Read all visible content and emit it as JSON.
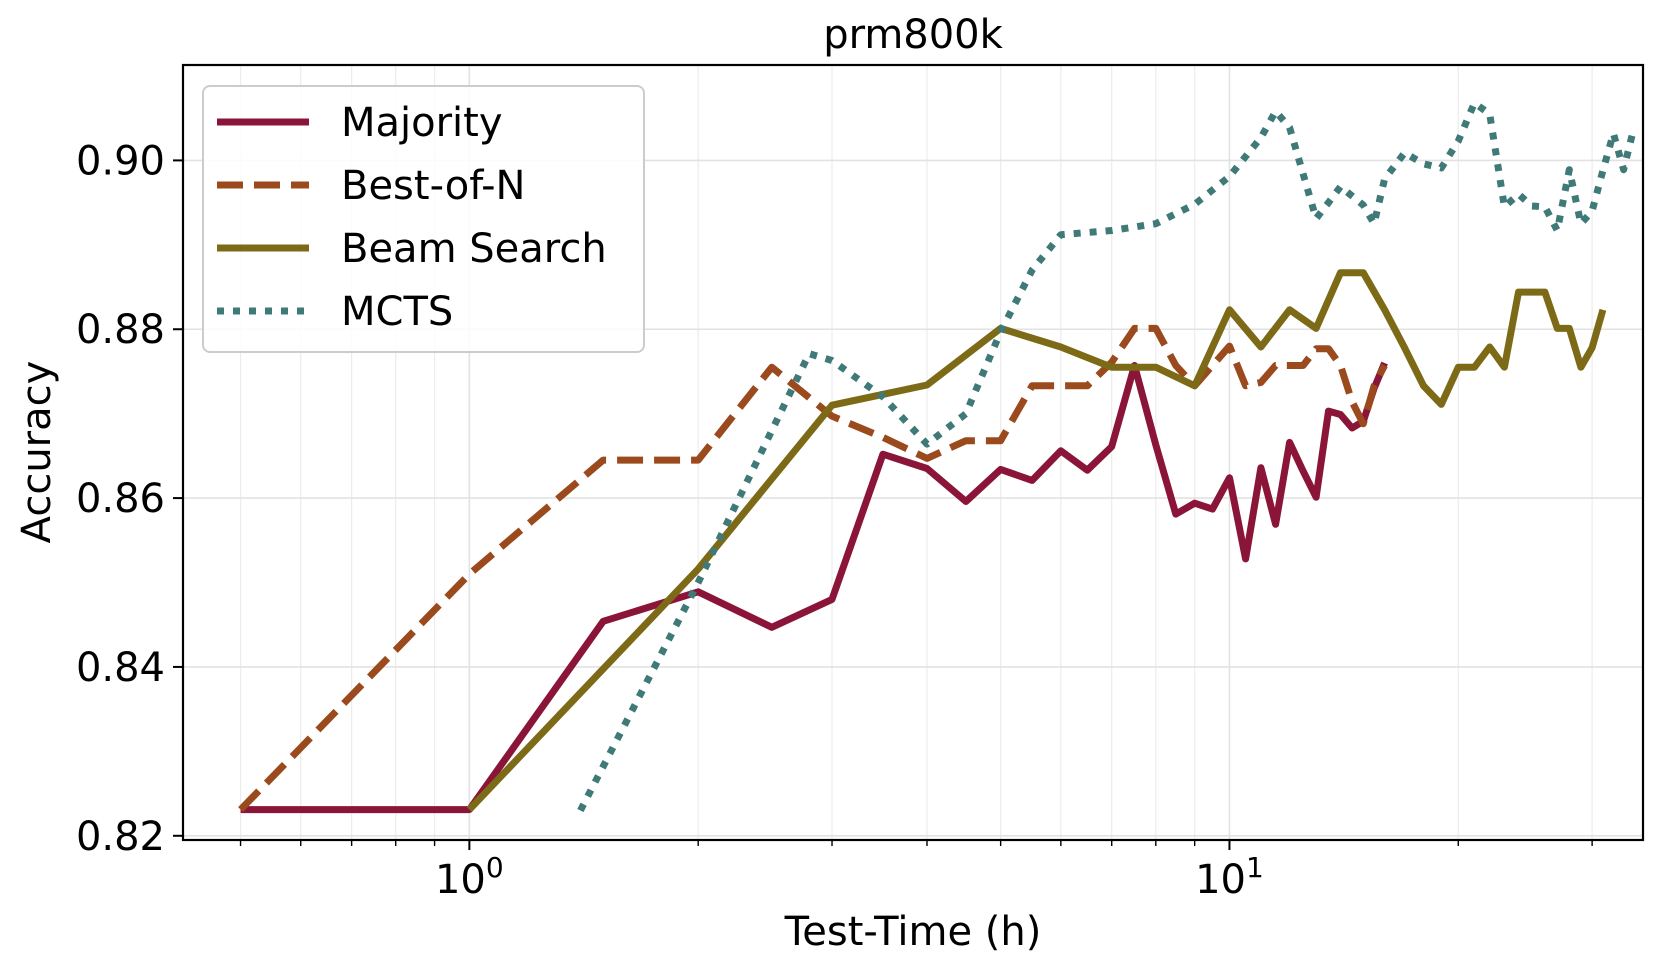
{
  "chart_data": {
    "type": "line",
    "title": "prm800k",
    "xlabel": "Test-Time (h)",
    "ylabel": "Accuracy",
    "xscale": "log",
    "xlim": [
      0.42,
      35.0
    ],
    "ylim": [
      0.8195,
      0.9113
    ],
    "xticks": [
      {
        "value": 1,
        "base": "10",
        "exp": "0"
      },
      {
        "value": 10,
        "base": "10",
        "exp": "1"
      }
    ],
    "yticks": [
      {
        "value": 0.82,
        "label": "0.82"
      },
      {
        "value": 0.84,
        "label": "0.84"
      },
      {
        "value": 0.86,
        "label": "0.86"
      },
      {
        "value": 0.88,
        "label": "0.88"
      },
      {
        "value": 0.9,
        "label": "0.90"
      }
    ],
    "grid": true,
    "legend_position": "top-left",
    "series": [
      {
        "name": "Majority",
        "color": "#8b1538",
        "style": "solid",
        "x": [
          0.5,
          1.0,
          1.5,
          2.0,
          2.5,
          3.0,
          3.5,
          4.0,
          4.5,
          5.0,
          5.5,
          6.0,
          6.5,
          7.0,
          7.5,
          8.0,
          8.5,
          9.0,
          9.5,
          10.0,
          10.5,
          11.0,
          11.5,
          12.0,
          12.5,
          13.0,
          13.5,
          14.0,
          14.5,
          15.0,
          15.5,
          16.0
        ],
        "y": [
          0.8231,
          0.8231,
          0.8454,
          0.8489,
          0.8447,
          0.848,
          0.8652,
          0.8635,
          0.8596,
          0.8634,
          0.8621,
          0.8656,
          0.8633,
          0.8661,
          0.8757,
          0.8663,
          0.8581,
          0.8594,
          0.8587,
          0.8624,
          0.8528,
          0.8636,
          0.8569,
          0.8666,
          0.8632,
          0.8601,
          0.8703,
          0.8699,
          0.8683,
          0.8691,
          0.873,
          0.876
        ]
      },
      {
        "name": "Best-of-N",
        "color": "#9a4a1d",
        "style": "dashed",
        "x": [
          0.5,
          1.0,
          1.5,
          2.0,
          2.5,
          3.0,
          3.5,
          4.0,
          4.5,
          5.0,
          5.5,
          6.0,
          6.5,
          7.0,
          7.5,
          8.0,
          8.5,
          9.0,
          9.5,
          10.0,
          10.5,
          11.0,
          11.5,
          12.0,
          12.5,
          13.0,
          13.5,
          14.0,
          14.5,
          15.0,
          15.5,
          16.0
        ],
        "y": [
          0.8231,
          0.851,
          0.8645,
          0.8645,
          0.8755,
          0.8697,
          0.8672,
          0.8647,
          0.8668,
          0.8668,
          0.8733,
          0.8733,
          0.8733,
          0.8761,
          0.8801,
          0.8801,
          0.8757,
          0.8733,
          0.8757,
          0.878,
          0.8733,
          0.8737,
          0.8757,
          0.8757,
          0.8757,
          0.8777,
          0.8777,
          0.8757,
          0.8714,
          0.8688,
          0.8733,
          0.8757
        ]
      },
      {
        "name": "Beam Search",
        "color": "#7d6a17",
        "style": "solid",
        "x": [
          1.0,
          2.0,
          3.0,
          4.0,
          5.0,
          6.0,
          7.0,
          8.0,
          9.0,
          10.0,
          11.0,
          12.0,
          13.0,
          14.0,
          15.0,
          16.0,
          17.0,
          18.0,
          19.0,
          20.0,
          21.0,
          22.0,
          23.0,
          24.0,
          25.0,
          26.0,
          27.0,
          28.0,
          29.0,
          30.0,
          31.0
        ],
        "y": [
          0.8231,
          0.8516,
          0.871,
          0.8734,
          0.8801,
          0.8779,
          0.8755,
          0.8755,
          0.8733,
          0.8823,
          0.8779,
          0.8823,
          0.8801,
          0.8867,
          0.8867,
          0.8823,
          0.8778,
          0.8733,
          0.8711,
          0.8755,
          0.8755,
          0.8779,
          0.8755,
          0.8844,
          0.8844,
          0.8844,
          0.8801,
          0.8801,
          0.8755,
          0.8778,
          0.8823
        ]
      },
      {
        "name": "MCTS",
        "color": "#3f7a78",
        "style": "dotted",
        "x": [
          1.4,
          2.0,
          2.5,
          2.8,
          3.0,
          3.5,
          4.0,
          4.5,
          5.0,
          5.5,
          6.0,
          7.0,
          8.0,
          9.0,
          10.0,
          11.0,
          11.5,
          12.0,
          13.0,
          13.5,
          14.0,
          15.0,
          15.5,
          16.0,
          17.0,
          18.0,
          19.0,
          20.0,
          21.0,
          22.0,
          23.0,
          24.0,
          25.0,
          26.0,
          27.0,
          28.0,
          29.0,
          30.0,
          31.0,
          32.0,
          33.0,
          34.0
        ],
        "y": [
          0.823,
          0.85,
          0.868,
          0.8771,
          0.8763,
          0.872,
          0.8664,
          0.87,
          0.8797,
          0.887,
          0.8912,
          0.8917,
          0.8925,
          0.8948,
          0.8981,
          0.9027,
          0.9058,
          0.9039,
          0.8931,
          0.895,
          0.8969,
          0.8947,
          0.8925,
          0.8978,
          0.9009,
          0.8996,
          0.8991,
          0.9023,
          0.9068,
          0.9055,
          0.8945,
          0.896,
          0.8946,
          0.8945,
          0.8917,
          0.8989,
          0.8925,
          0.894,
          0.8988,
          0.9032,
          0.8989,
          0.9036
        ]
      }
    ]
  }
}
